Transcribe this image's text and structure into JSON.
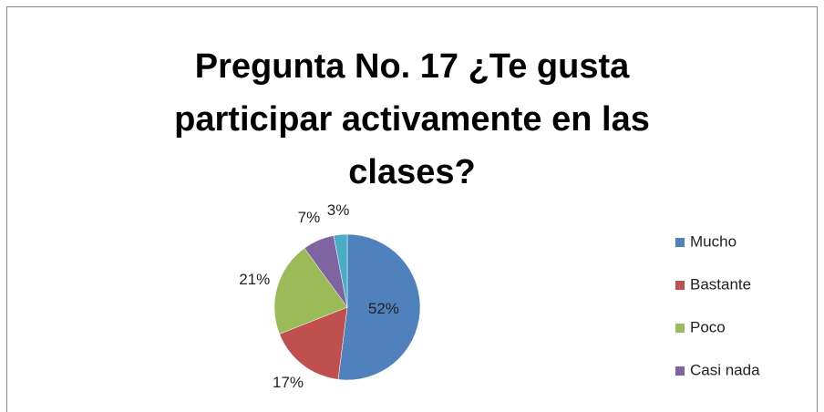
{
  "chart_data": {
    "type": "pie",
    "title": "Pregunta No. 17 ¿Te gusta participar activamente en las clases?",
    "categories": [
      "Mucho",
      "Bastante",
      "Poco",
      "Casi nada",
      null
    ],
    "values": [
      52,
      17,
      21,
      7,
      3
    ],
    "value_labels": [
      "52%",
      "17%",
      "21%",
      "7%",
      "3%"
    ],
    "colors": [
      "#4f81bd",
      "#c0504d",
      "#9bbb59",
      "#8064a2",
      "#4bacc6"
    ],
    "legend": "right"
  }
}
